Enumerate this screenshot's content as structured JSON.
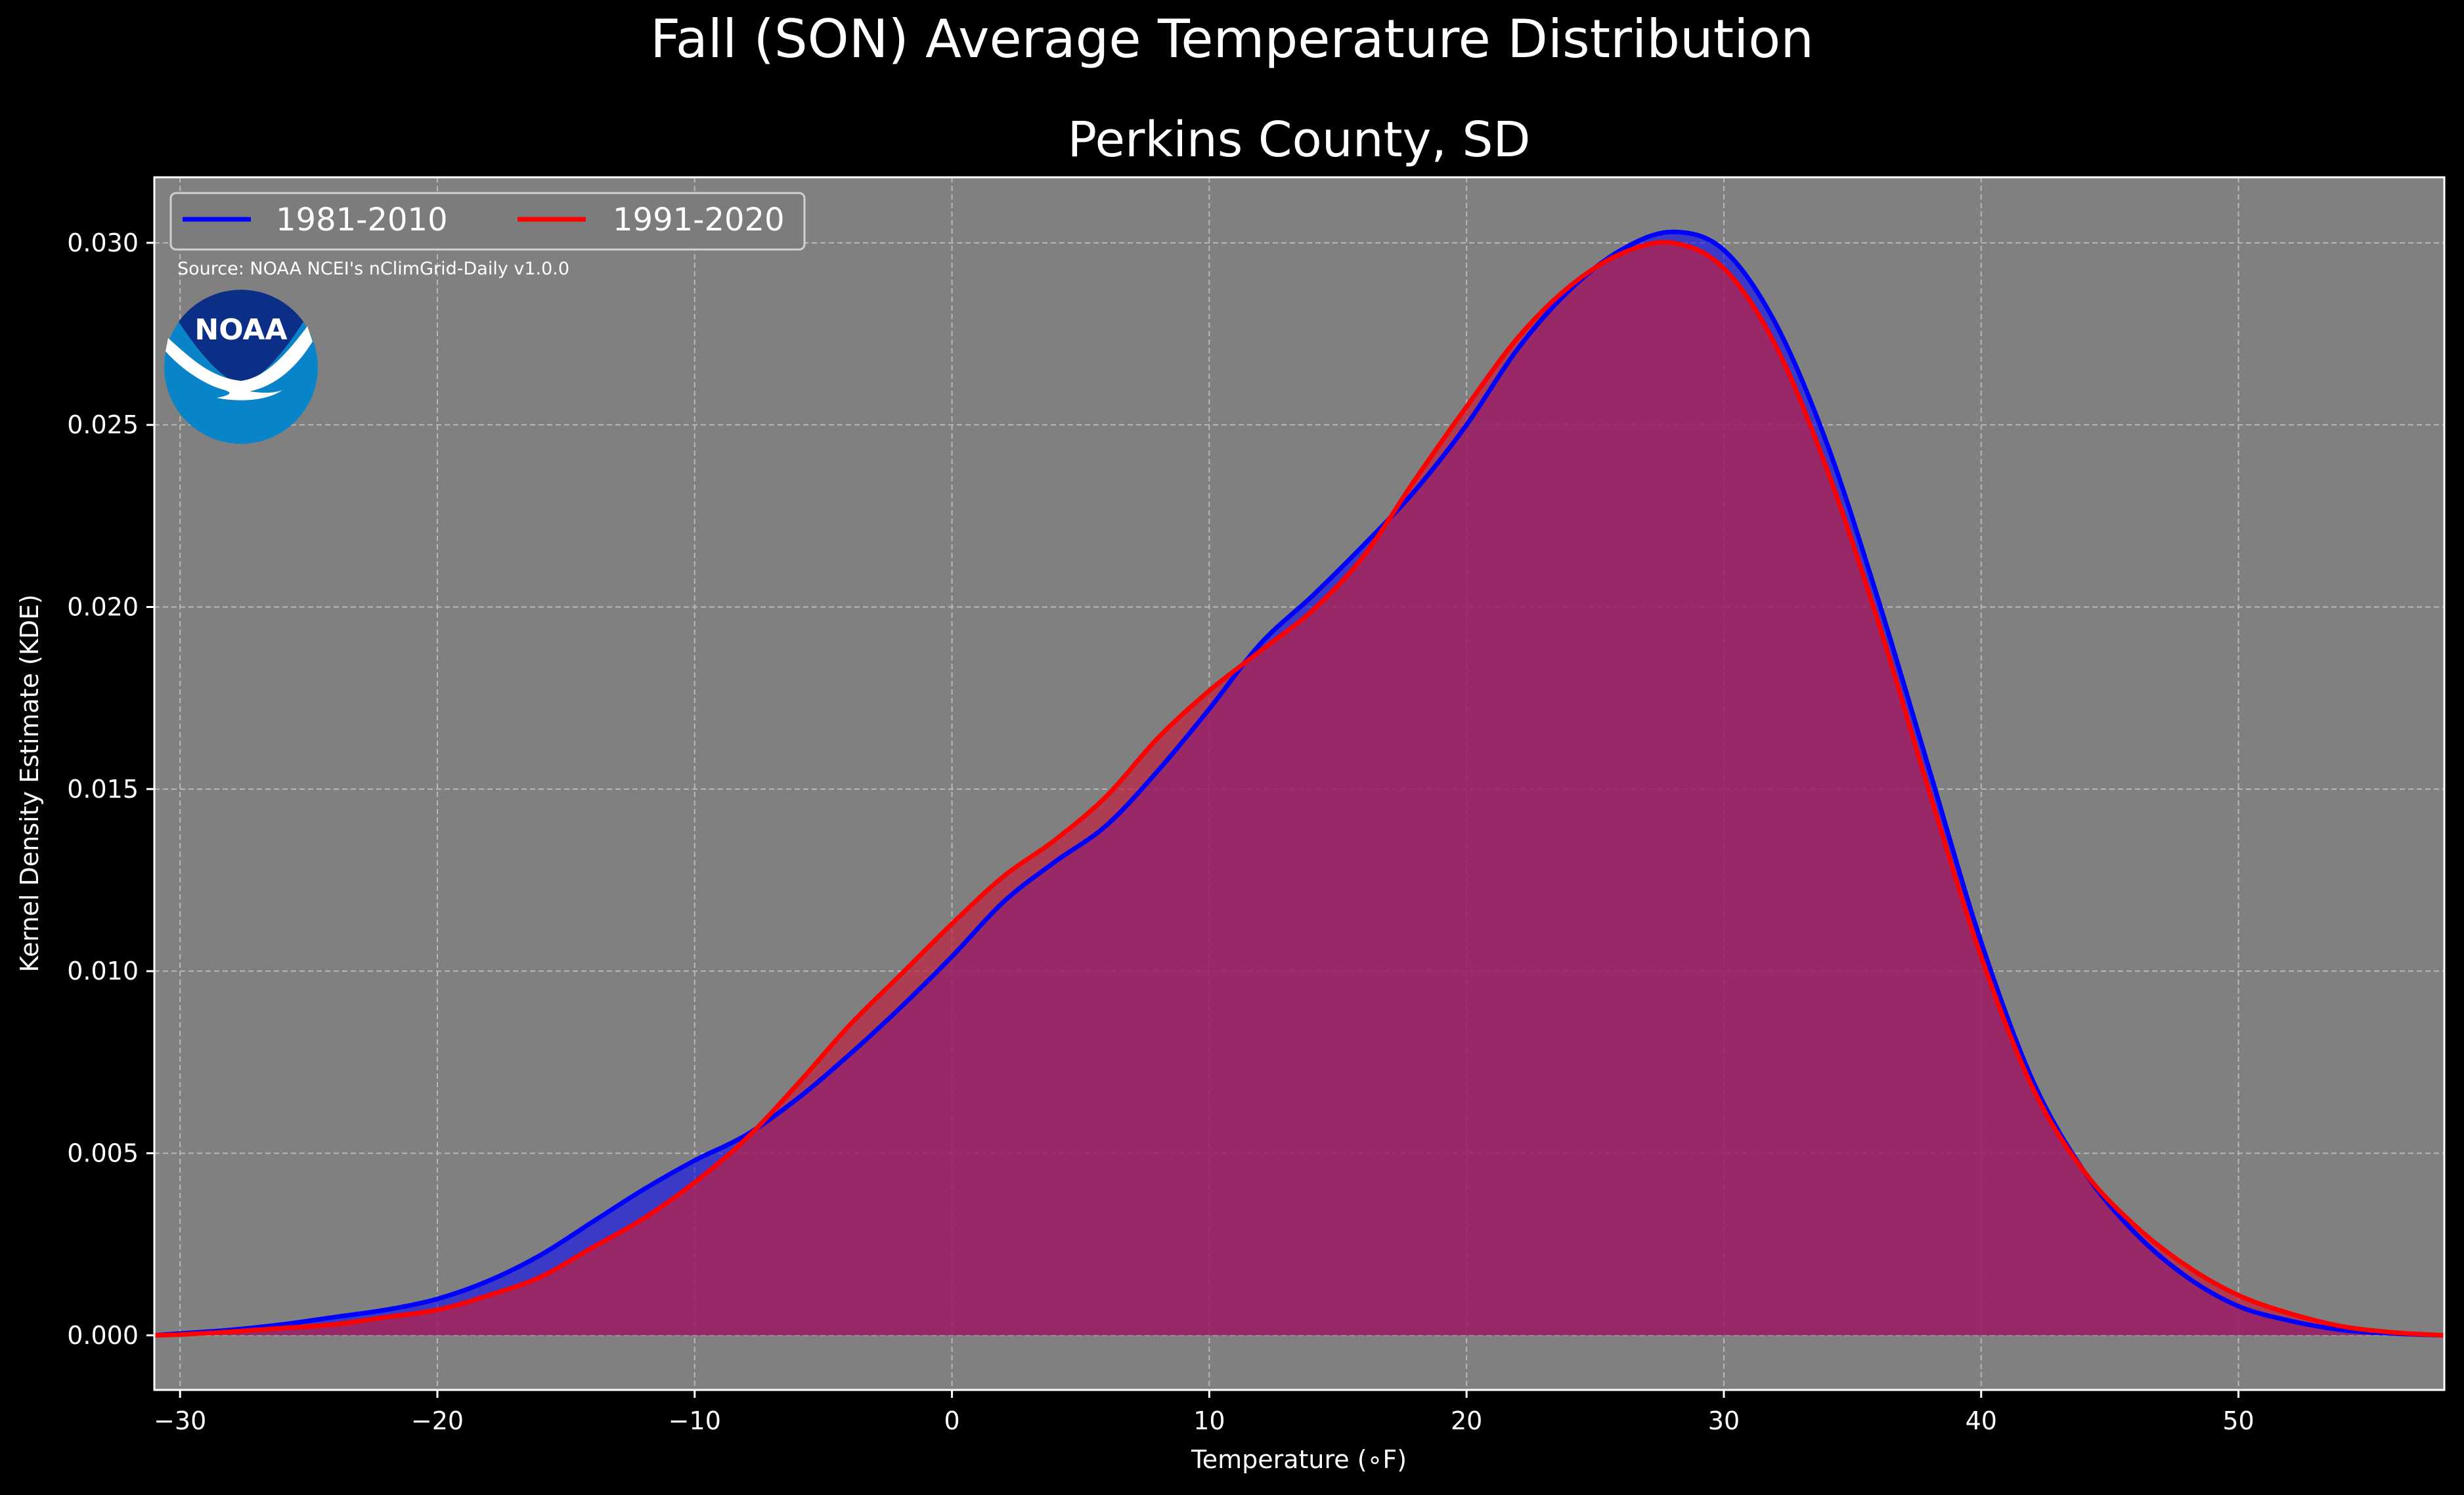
{
  "chart_data": {
    "type": "area",
    "suptitle": "Fall (SON) Average Temperature Distribution",
    "title": "Perkins County, SD",
    "xlabel": "Temperature (∘F)",
    "ylabel": "Kernel Density Estimate (KDE)",
    "xlim": [
      -31,
      58
    ],
    "ylim": [
      -0.0015,
      0.0318
    ],
    "xticks": [
      -30,
      -20,
      -10,
      0,
      10,
      20,
      30,
      40,
      50
    ],
    "xtick_labels": [
      "−30",
      "−20",
      "−10",
      "0",
      "10",
      "20",
      "30",
      "40",
      "50"
    ],
    "yticks": [
      0.0,
      0.005,
      0.01,
      0.015,
      0.02,
      0.025,
      0.03
    ],
    "ytick_labels": [
      "0.000",
      "0.005",
      "0.010",
      "0.015",
      "0.020",
      "0.025",
      "0.030"
    ],
    "grid": true,
    "legend_position": "top-left",
    "source_note": "Source: NOAA NCEI's nClimGrid-Daily v1.0.0",
    "logo_text": "NOAA",
    "plot_background": "#808080",
    "figure_background": "#000000",
    "series": [
      {
        "name": "1981-2010",
        "color": "#0000ff",
        "fill": "#0000ff",
        "points": [
          [
            -31,
            0.0
          ],
          [
            -30,
            5e-05
          ],
          [
            -28,
            0.00015
          ],
          [
            -26,
            0.0003
          ],
          [
            -24,
            0.0005
          ],
          [
            -22,
            0.0007
          ],
          [
            -20,
            0.001
          ],
          [
            -18,
            0.0015
          ],
          [
            -16,
            0.0022
          ],
          [
            -14,
            0.0031
          ],
          [
            -12,
            0.004
          ],
          [
            -10,
            0.0048
          ],
          [
            -8,
            0.0055
          ],
          [
            -6,
            0.0065
          ],
          [
            -4,
            0.0077
          ],
          [
            -2,
            0.009
          ],
          [
            0,
            0.0104
          ],
          [
            2,
            0.0119
          ],
          [
            4,
            0.013
          ],
          [
            6,
            0.014
          ],
          [
            8,
            0.0155
          ],
          [
            10,
            0.0172
          ],
          [
            12,
            0.019
          ],
          [
            14,
            0.0203
          ],
          [
            16,
            0.0217
          ],
          [
            18,
            0.0232
          ],
          [
            20,
            0.025
          ],
          [
            22,
            0.0271
          ],
          [
            24,
            0.0287
          ],
          [
            26,
            0.0298
          ],
          [
            28,
            0.0303
          ],
          [
            30,
            0.0298
          ],
          [
            32,
            0.0278
          ],
          [
            34,
            0.0245
          ],
          [
            36,
            0.0202
          ],
          [
            38,
            0.0155
          ],
          [
            40,
            0.0108
          ],
          [
            42,
            0.007
          ],
          [
            44,
            0.0045
          ],
          [
            46,
            0.0028
          ],
          [
            48,
            0.0016
          ],
          [
            50,
            0.0008
          ],
          [
            52,
            0.0004
          ],
          [
            54,
            0.00015
          ],
          [
            56,
            5e-05
          ],
          [
            58,
            0.0
          ]
        ]
      },
      {
        "name": "1991-2020",
        "color": "#ff0000",
        "fill": "#c0213f",
        "points": [
          [
            -31,
            0.0
          ],
          [
            -30,
            2e-05
          ],
          [
            -28,
            0.0001
          ],
          [
            -26,
            0.0002
          ],
          [
            -24,
            0.0003
          ],
          [
            -22,
            0.0005
          ],
          [
            -20,
            0.0007
          ],
          [
            -18,
            0.0011
          ],
          [
            -16,
            0.0016
          ],
          [
            -14,
            0.0024
          ],
          [
            -12,
            0.0032
          ],
          [
            -10,
            0.0042
          ],
          [
            -8,
            0.0054
          ],
          [
            -6,
            0.0069
          ],
          [
            -4,
            0.0085
          ],
          [
            -2,
            0.0099
          ],
          [
            0,
            0.0113
          ],
          [
            2,
            0.0126
          ],
          [
            4,
            0.0136
          ],
          [
            6,
            0.0148
          ],
          [
            8,
            0.0164
          ],
          [
            10,
            0.0177
          ],
          [
            12,
            0.0188
          ],
          [
            14,
            0.0199
          ],
          [
            16,
            0.0214
          ],
          [
            18,
            0.0235
          ],
          [
            20,
            0.0255
          ],
          [
            22,
            0.0274
          ],
          [
            24,
            0.0288
          ],
          [
            26,
            0.0297
          ],
          [
            28,
            0.03
          ],
          [
            30,
            0.0293
          ],
          [
            32,
            0.0272
          ],
          [
            34,
            0.0238
          ],
          [
            36,
            0.0196
          ],
          [
            38,
            0.0149
          ],
          [
            40,
            0.0104
          ],
          [
            42,
            0.0068
          ],
          [
            44,
            0.0045
          ],
          [
            46,
            0.003
          ],
          [
            48,
            0.0019
          ],
          [
            50,
            0.0011
          ],
          [
            52,
            0.0006
          ],
          [
            54,
            0.00025
          ],
          [
            56,
            8e-05
          ],
          [
            58,
            0.0
          ]
        ]
      }
    ]
  }
}
